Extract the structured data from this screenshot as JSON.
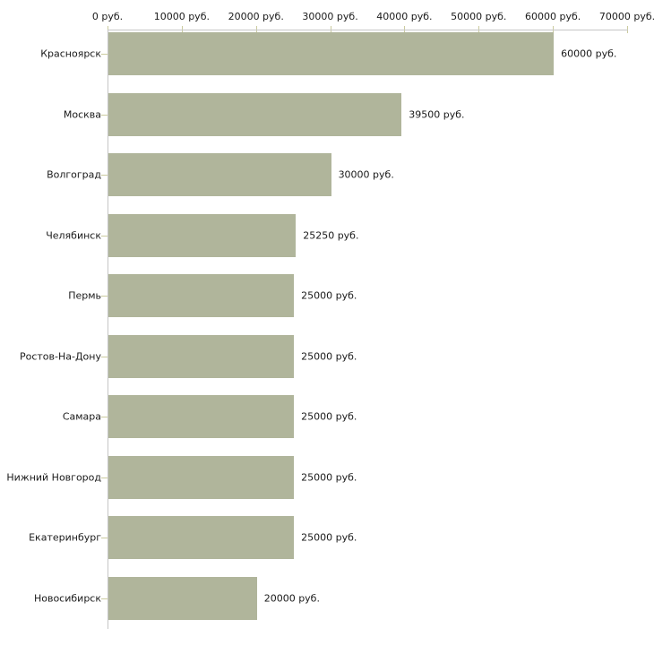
{
  "chart_data": {
    "type": "bar",
    "orientation": "horizontal",
    "title": "",
    "xlabel": "",
    "ylabel": "",
    "unit": "руб.",
    "categories": [
      "Красноярск",
      "Москва",
      "Волгоград",
      "Челябинск",
      "Пермь",
      "Ростов-На-Дону",
      "Самара",
      "Нижний Новгород",
      "Екатеринбург",
      "Новосибирск"
    ],
    "values": [
      60000,
      39500,
      30000,
      25250,
      25000,
      25000,
      25000,
      25000,
      25000,
      20000
    ],
    "value_labels": [
      "60000 руб.",
      "39500 руб.",
      "30000 руб.",
      "25250 руб.",
      "25000 руб.",
      "25000 руб.",
      "25000 руб.",
      "25000 руб.",
      "25000 руб.",
      "20000 руб."
    ],
    "x_tick_values": [
      0,
      10000,
      20000,
      30000,
      40000,
      50000,
      60000,
      70000
    ],
    "x_tick_labels": [
      "0 руб.",
      "10000 руб.",
      "20000 руб.",
      "30000 руб.",
      "40000 руб.",
      "50000 руб.",
      "60000 руб.",
      "70000 руб."
    ],
    "xlim": [
      0,
      70000
    ],
    "grid": false,
    "legend": "none",
    "colors": {
      "bar": "#b0b59b",
      "axis_line": "#c6c6c6",
      "tick": "#cbcb9f",
      "text": "#1a1a1a",
      "background": "#ffffff"
    }
  }
}
